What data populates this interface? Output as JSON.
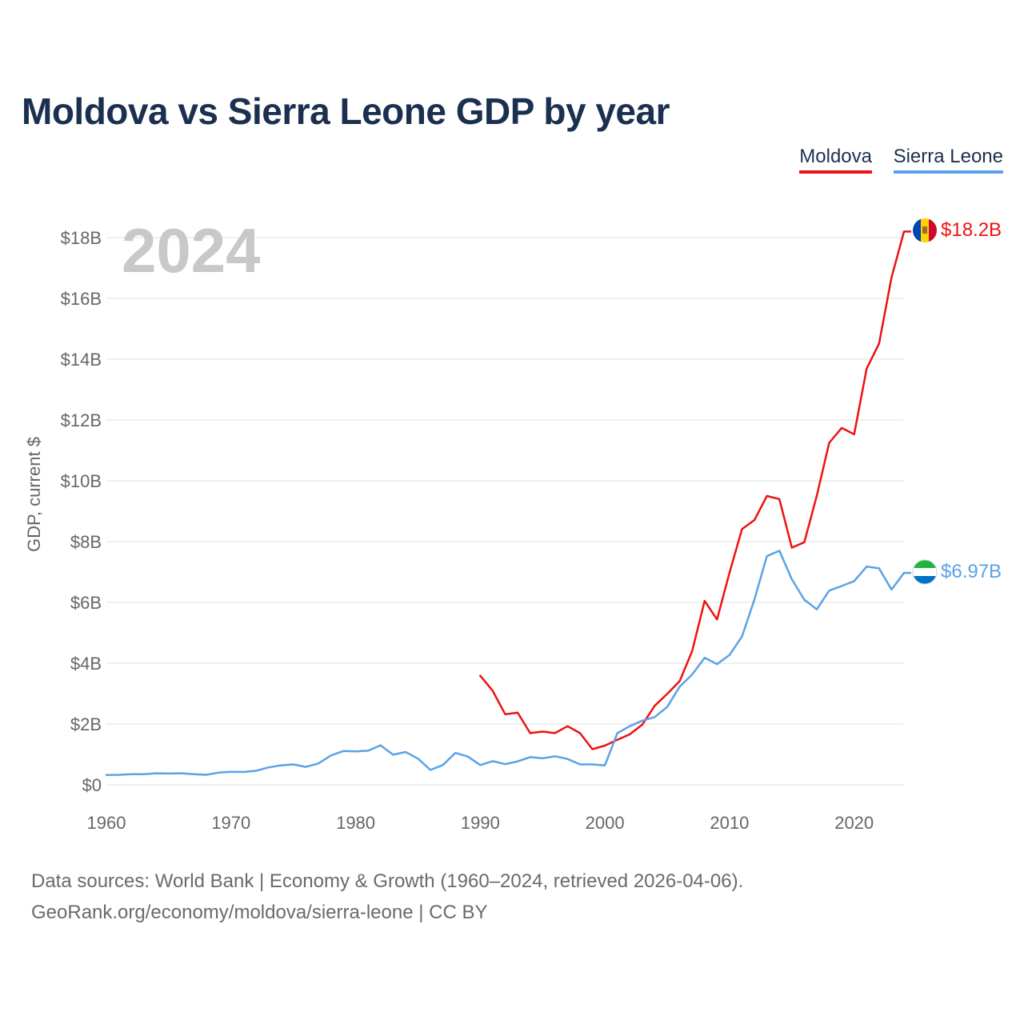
{
  "title": "Moldova vs Sierra Leone GDP by year",
  "legend": {
    "moldova": "Moldova",
    "sierra_leone": "Sierra Leone"
  },
  "year_label": "2024",
  "footer": {
    "line1": "Data sources: World Bank | Economy & Growth (1960–2024, retrieved 2026-04-06).",
    "line2": "GeoRank.org/economy/moldova/sierra-leone | CC BY"
  },
  "colors": {
    "moldova": "#ee1111",
    "sierra_leone": "#5aa2e6",
    "title": "#1b3050",
    "grid": "#e6e6e6",
    "axis_text": "#666666",
    "year": "#c8c8c8"
  },
  "chart_data": {
    "type": "line",
    "title": "Moldova vs Sierra Leone GDP by year",
    "xlabel": "",
    "ylabel": "GDP, current $",
    "xlim": [
      1960,
      2024
    ],
    "ylim": [
      0,
      18
    ],
    "x_ticks": [
      1960,
      1970,
      1980,
      1990,
      2000,
      2010,
      2020
    ],
    "x_tick_labels": [
      "1960",
      "1970",
      "1980",
      "1990",
      "2000",
      "2010",
      "2020"
    ],
    "y_ticks": [
      0,
      2,
      4,
      6,
      8,
      10,
      12,
      14,
      16,
      18
    ],
    "y_tick_labels": [
      "$0",
      "$2B",
      "$4B",
      "$6B",
      "$8B",
      "$10B",
      "$12B",
      "$14B",
      "$16B",
      "$18B"
    ],
    "grid": true,
    "legend_position": "top-right",
    "series": [
      {
        "name": "Moldova",
        "key": "moldova",
        "end_label": "$18.2B",
        "x": [
          1990,
          1991,
          1992,
          1993,
          1994,
          1995,
          1996,
          1997,
          1998,
          1999,
          2000,
          2001,
          2002,
          2003,
          2004,
          2005,
          2006,
          2007,
          2008,
          2009,
          2010,
          2011,
          2012,
          2013,
          2014,
          2015,
          2016,
          2017,
          2018,
          2019,
          2020,
          2021,
          2022,
          2023,
          2024
        ],
        "values": [
          3.59,
          3.09,
          2.32,
          2.37,
          1.7,
          1.75,
          1.7,
          1.93,
          1.7,
          1.17,
          1.29,
          1.48,
          1.66,
          1.98,
          2.6,
          2.99,
          3.41,
          4.4,
          6.05,
          5.44,
          6.98,
          8.41,
          8.71,
          9.5,
          9.4,
          7.8,
          7.98,
          9.51,
          11.25,
          11.74,
          11.53,
          13.69,
          14.51,
          16.69,
          18.2
        ]
      },
      {
        "name": "Sierra Leone",
        "key": "sierra_leone",
        "end_label": "$6.97B",
        "x": [
          1960,
          1961,
          1962,
          1963,
          1964,
          1965,
          1966,
          1967,
          1968,
          1969,
          1970,
          1971,
          1972,
          1973,
          1974,
          1975,
          1976,
          1977,
          1978,
          1979,
          1980,
          1981,
          1982,
          1983,
          1984,
          1985,
          1986,
          1987,
          1988,
          1989,
          1990,
          1991,
          1992,
          1993,
          1994,
          1995,
          1996,
          1997,
          1998,
          1999,
          2000,
          2001,
          2002,
          2003,
          2004,
          2005,
          2006,
          2007,
          2008,
          2009,
          2010,
          2011,
          2012,
          2013,
          2014,
          2015,
          2016,
          2017,
          2018,
          2019,
          2020,
          2021,
          2022,
          2023,
          2024
        ],
        "values": [
          0.32,
          0.33,
          0.35,
          0.35,
          0.38,
          0.37,
          0.38,
          0.35,
          0.33,
          0.4,
          0.43,
          0.42,
          0.46,
          0.57,
          0.64,
          0.67,
          0.59,
          0.7,
          0.96,
          1.11,
          1.1,
          1.12,
          1.3,
          0.99,
          1.08,
          0.86,
          0.49,
          0.65,
          1.05,
          0.93,
          0.65,
          0.78,
          0.68,
          0.77,
          0.91,
          0.87,
          0.94,
          0.85,
          0.67,
          0.67,
          0.64,
          1.7,
          1.93,
          2.11,
          2.23,
          2.56,
          3.23,
          3.63,
          4.18,
          3.97,
          4.27,
          4.88,
          6.1,
          7.52,
          7.7,
          6.76,
          6.09,
          5.77,
          6.39,
          6.54,
          6.7,
          7.18,
          7.12,
          6.42,
          6.97
        ]
      }
    ]
  }
}
